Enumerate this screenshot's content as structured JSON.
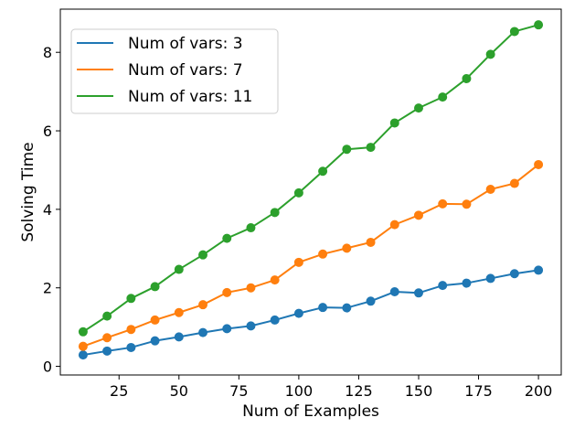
{
  "chart_data": {
    "type": "line",
    "title": "",
    "xlabel": "Num of Examples",
    "ylabel": "Solving Time",
    "xlim": [
      0.5,
      209.5
    ],
    "ylim": [
      -0.22,
      9.1
    ],
    "x_ticks": [
      25,
      50,
      75,
      100,
      125,
      150,
      175,
      200
    ],
    "y_ticks": [
      0,
      2,
      4,
      6,
      8
    ],
    "grid": false,
    "legend_position": "top-left",
    "markers": "circle",
    "x": [
      10,
      20,
      30,
      40,
      50,
      60,
      70,
      80,
      90,
      100,
      110,
      120,
      130,
      140,
      150,
      160,
      170,
      180,
      190,
      200
    ],
    "series": [
      {
        "name": "Num of vars: 3",
        "color": "#1f77b4",
        "values": [
          0.29,
          0.39,
          0.48,
          0.65,
          0.75,
          0.86,
          0.96,
          1.03,
          1.18,
          1.35,
          1.5,
          1.49,
          1.66,
          1.9,
          1.87,
          2.06,
          2.12,
          2.24,
          2.36,
          2.45
        ]
      },
      {
        "name": "Num of vars: 7",
        "color": "#ff7f0e",
        "values": [
          0.51,
          0.73,
          0.94,
          1.18,
          1.37,
          1.57,
          1.88,
          2.0,
          2.2,
          2.65,
          2.86,
          3.01,
          3.16,
          3.61,
          3.85,
          4.14,
          4.13,
          4.51,
          4.66,
          5.14
        ]
      },
      {
        "name": "Num of vars: 11",
        "color": "#2ca02c",
        "values": [
          0.88,
          1.28,
          1.73,
          2.03,
          2.47,
          2.84,
          3.26,
          3.53,
          3.92,
          4.42,
          4.97,
          5.53,
          5.58,
          6.2,
          6.58,
          6.86,
          7.33,
          7.95,
          8.53,
          8.7
        ]
      }
    ]
  }
}
